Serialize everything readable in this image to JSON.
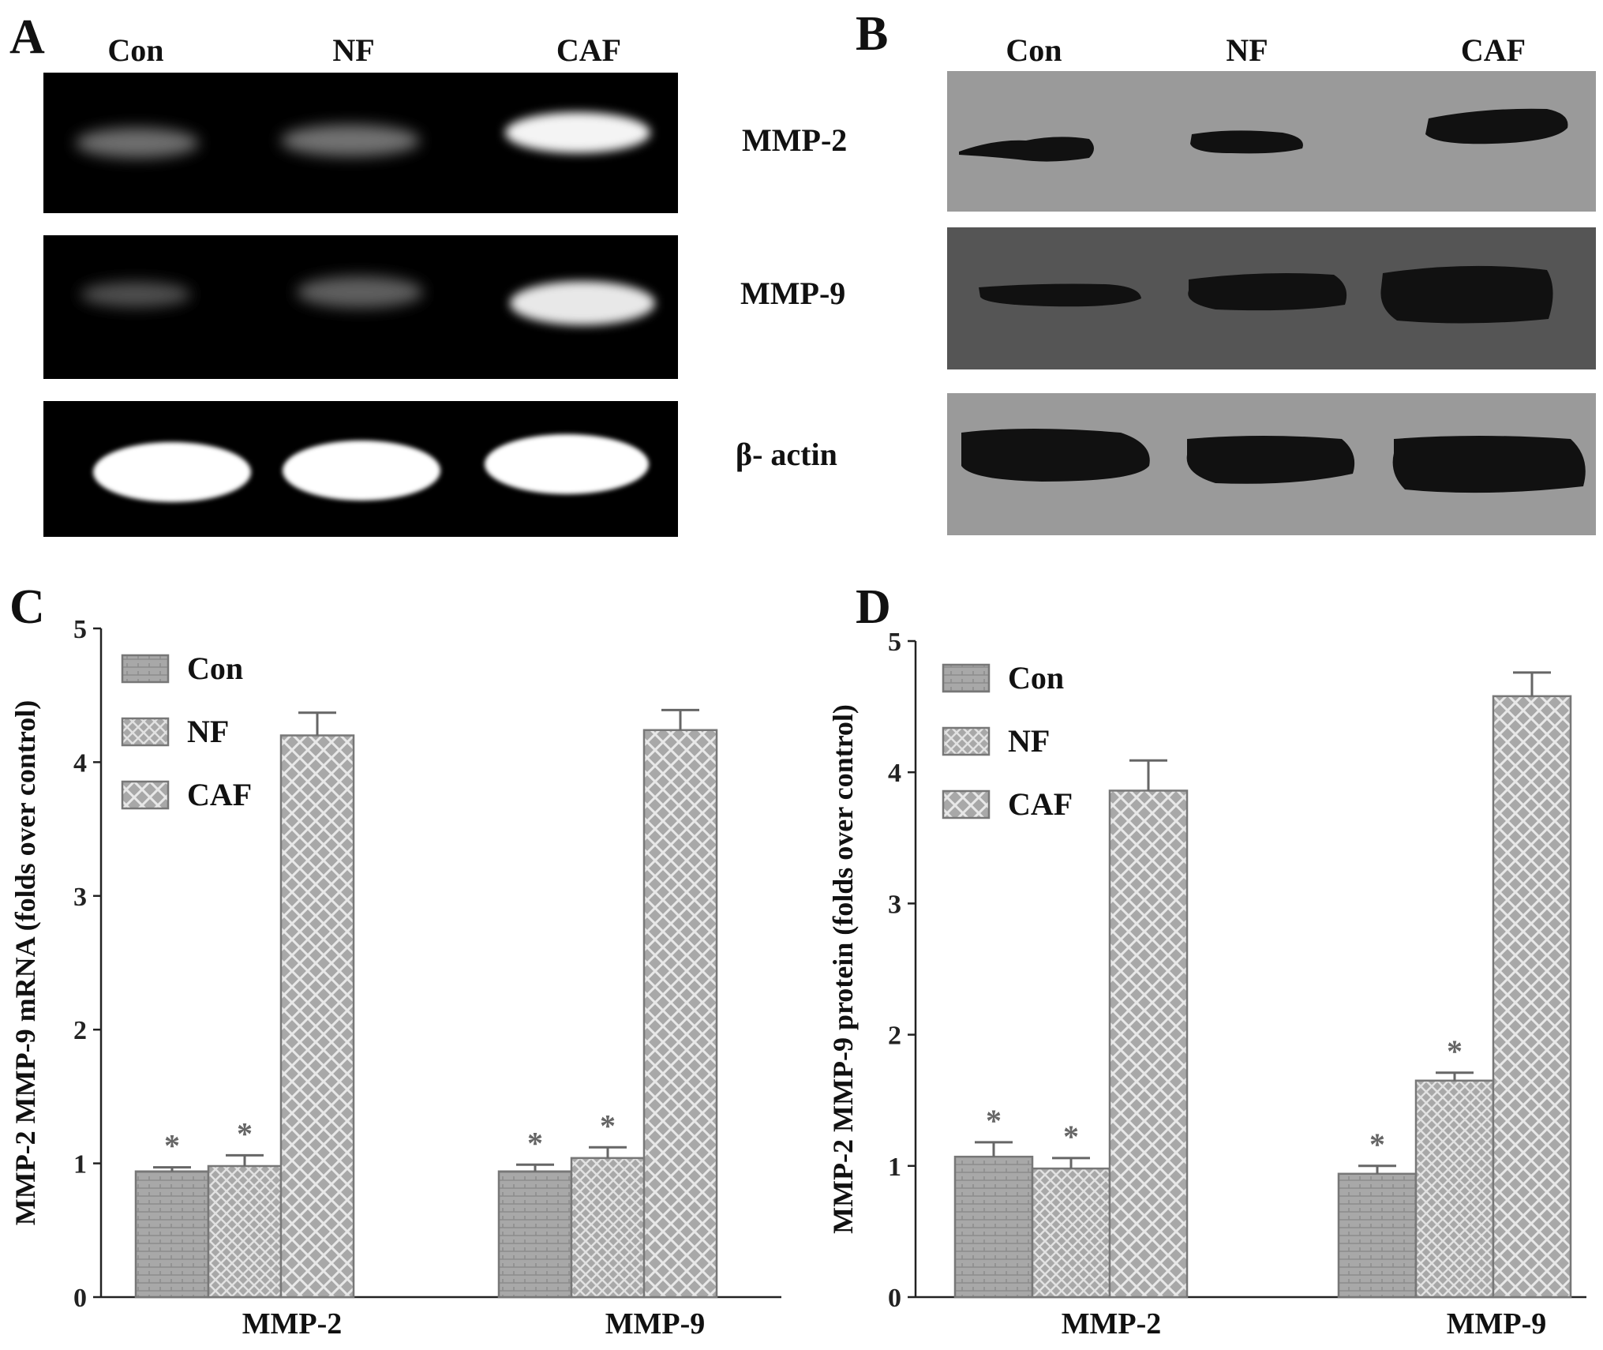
{
  "panels": {
    "A": {
      "letter": "A"
    },
    "B": {
      "letter": "B"
    },
    "C": {
      "letter": "C"
    },
    "D": {
      "letter": "D"
    }
  },
  "lanes": [
    "Con",
    "NF",
    "CAF"
  ],
  "row_labels": {
    "mmp2": "MMP-2",
    "mmp9": "MMP-9",
    "actin": "β- actin"
  },
  "colors": {
    "gel_bg": "#000000",
    "gel_band": "#ffffff",
    "blot_bg_light": "#9a9a9a",
    "blot_bg_dark": "#555555",
    "bar_fill": "#a8a8a8",
    "bar_stroke": "#777777"
  },
  "chart_data": [
    {
      "type": "bar",
      "ylabel": "MMP-2 MMP-9 mRNA (folds over control)",
      "categories": [
        "MMP-2",
        "MMP-9"
      ],
      "ylim": [
        0,
        5
      ],
      "yticks": [
        "0",
        "1",
        "2",
        "3",
        "4",
        "5"
      ],
      "legend_position": "top-left",
      "series": [
        {
          "name": "Con",
          "values": [
            0.94,
            0.94
          ],
          "errors": [
            0.03,
            0.05
          ],
          "marks": [
            "*",
            "*"
          ]
        },
        {
          "name": "NF",
          "values": [
            0.98,
            1.04
          ],
          "errors": [
            0.08,
            0.08
          ],
          "marks": [
            "*",
            "*"
          ]
        },
        {
          "name": "CAF",
          "values": [
            4.2,
            4.24
          ],
          "errors": [
            0.17,
            0.15
          ],
          "marks": [
            "",
            ""
          ]
        }
      ]
    },
    {
      "type": "bar",
      "ylabel": "MMP-2 MMP-9 protein (folds over control)",
      "categories": [
        "MMP-2",
        "MMP-9"
      ],
      "ylim": [
        0,
        5
      ],
      "yticks": [
        "0",
        "1",
        "2",
        "3",
        "4",
        "5"
      ],
      "legend_position": "top-left",
      "series": [
        {
          "name": "Con",
          "values": [
            1.07,
            0.94
          ],
          "errors": [
            0.11,
            0.06
          ],
          "marks": [
            "*",
            "*"
          ]
        },
        {
          "name": "NF",
          "values": [
            0.98,
            1.65
          ],
          "errors": [
            0.08,
            0.06
          ],
          "marks": [
            "*",
            "*"
          ]
        },
        {
          "name": "CAF",
          "values": [
            3.86,
            4.58
          ],
          "errors": [
            0.23,
            0.18
          ],
          "marks": [
            "",
            ""
          ]
        }
      ]
    }
  ]
}
